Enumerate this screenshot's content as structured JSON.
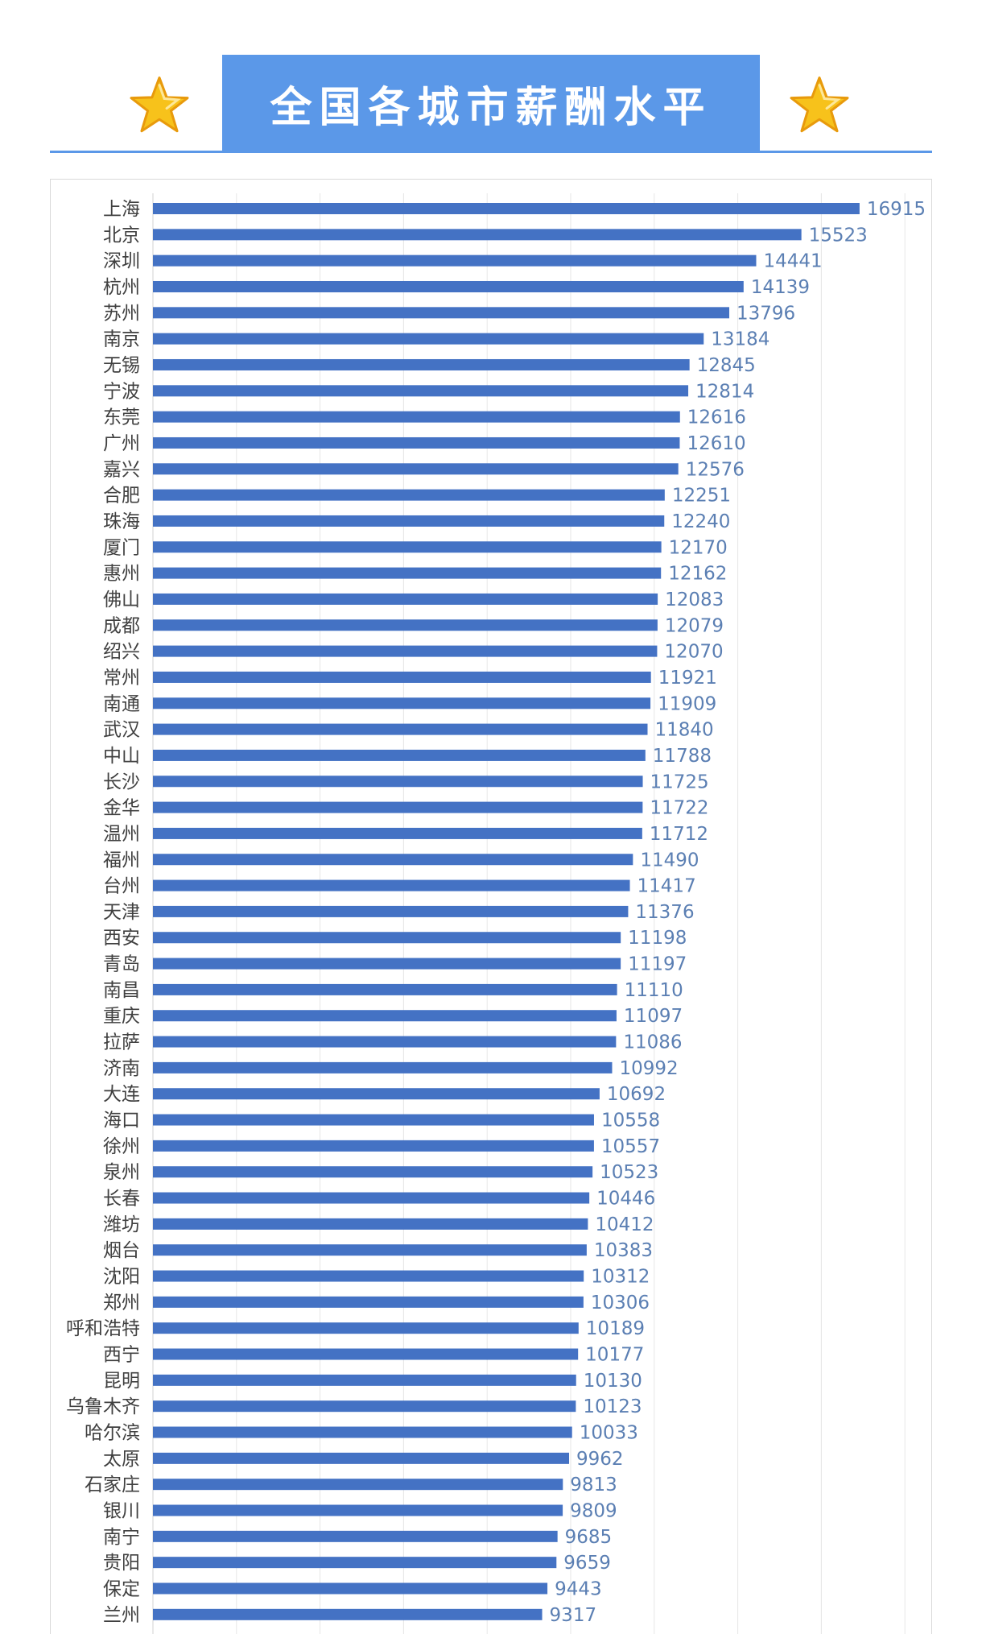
{
  "header": {
    "title": "全国各城市薪酬水平",
    "banner_color": "#5b98e8",
    "left_icon": "star-icon",
    "right_icon": "star-icon"
  },
  "chart_data": {
    "type": "bar",
    "orientation": "horizontal",
    "bar_color": "#4472c4",
    "value_label_color": "#5b7fb3",
    "grid": true,
    "xlim": [
      0,
      18000
    ],
    "x_gridlines": [
      0,
      2000,
      4000,
      6000,
      8000,
      10000,
      12000,
      14000,
      16000,
      18000
    ],
    "categories": [
      "上海",
      "北京",
      "深圳",
      "杭州",
      "苏州",
      "南京",
      "无锡",
      "宁波",
      "东莞",
      "广州",
      "嘉兴",
      "合肥",
      "珠海",
      "厦门",
      "惠州",
      "佛山",
      "成都",
      "绍兴",
      "常州",
      "南通",
      "武汉",
      "中山",
      "长沙",
      "金华",
      "温州",
      "福州",
      "台州",
      "天津",
      "西安",
      "青岛",
      "南昌",
      "重庆",
      "拉萨",
      "济南",
      "大连",
      "海口",
      "徐州",
      "泉州",
      "长春",
      "潍坊",
      "烟台",
      "沈阳",
      "郑州",
      "呼和浩特",
      "西宁",
      "昆明",
      "乌鲁木齐",
      "哈尔滨",
      "太原",
      "石家庄",
      "银川",
      "南宁",
      "贵阳",
      "保定",
      "兰州"
    ],
    "values": [
      16915,
      15523,
      14441,
      14139,
      13796,
      13184,
      12845,
      12814,
      12616,
      12610,
      12576,
      12251,
      12240,
      12170,
      12162,
      12083,
      12079,
      12070,
      11921,
      11909,
      11840,
      11788,
      11725,
      11722,
      11712,
      11490,
      11417,
      11376,
      11198,
      11197,
      11110,
      11097,
      11086,
      10992,
      10692,
      10558,
      10557,
      10523,
      10446,
      10412,
      10383,
      10312,
      10306,
      10189,
      10177,
      10130,
      10123,
      10033,
      9962,
      9813,
      9809,
      9685,
      9659,
      9443,
      9317
    ]
  }
}
